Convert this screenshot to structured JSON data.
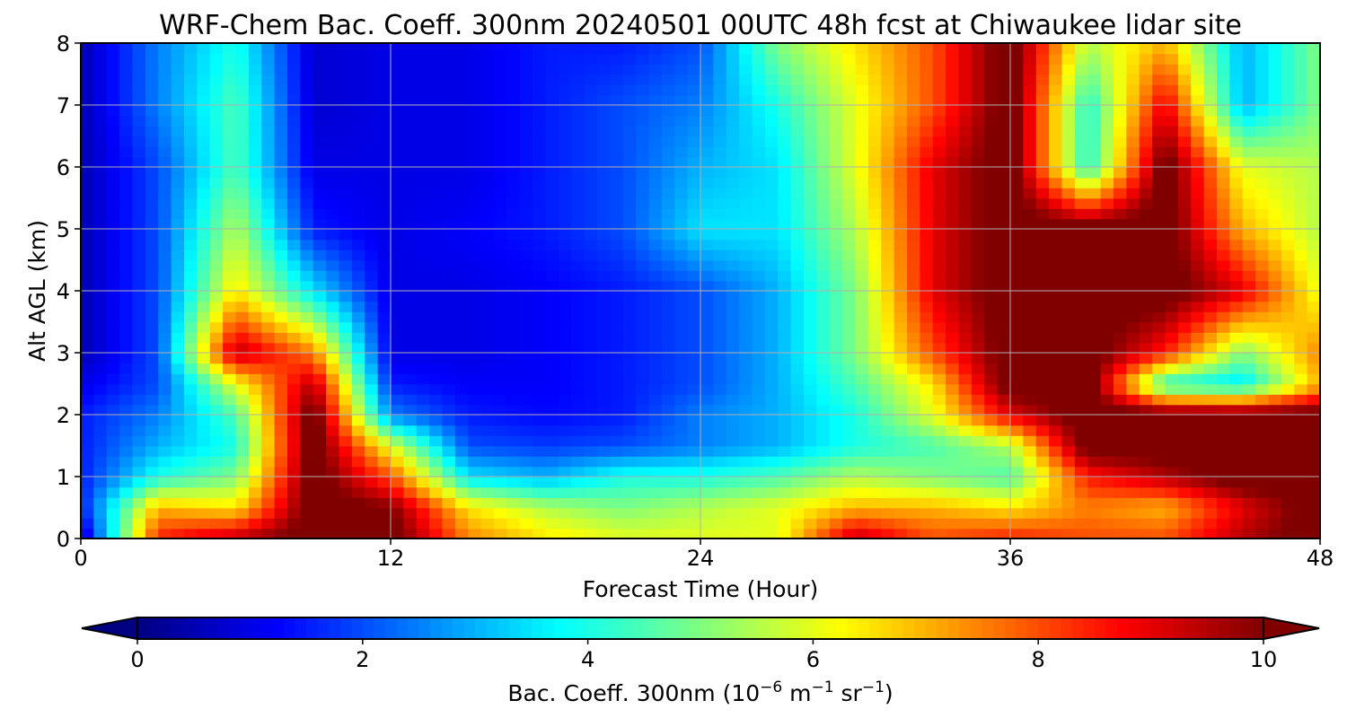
{
  "chart_data": {
    "type": "heatmap",
    "title": "WRF-Chem Bac. Coeff. 300nm  20240501 00UTC 48h fcst at Chiwaukee lidar site",
    "xlabel": "Forecast Time (Hour)",
    "ylabel": "Alt AGL (km)",
    "xlim": [
      0,
      48
    ],
    "ylim": [
      0,
      8
    ],
    "x_ticks": [
      0,
      12,
      24,
      36,
      48
    ],
    "y_ticks": [
      0,
      1,
      2,
      3,
      4,
      5,
      6,
      7,
      8
    ],
    "grid": true,
    "colormap": "jet",
    "colorbar": {
      "orientation": "horizontal",
      "placement": "bottom",
      "range": [
        0,
        10
      ],
      "ticks": [
        0,
        2,
        4,
        6,
        8,
        10
      ],
      "extend": "both",
      "label_main": "Bac. Coeff. 300nm  (10",
      "label_exp1": "−6",
      "label_mid": " m",
      "label_exp2": "−1",
      "label_mid2": " sr",
      "label_exp3": "−1",
      "label_end": ")"
    },
    "x": [
      0,
      3,
      6,
      9,
      12,
      15,
      18,
      21,
      24,
      27,
      30,
      33,
      36,
      39,
      42,
      45,
      48
    ],
    "y": [
      0,
      0.5,
      1,
      1.5,
      2,
      2.5,
      3,
      4,
      5,
      6,
      7,
      8
    ],
    "z": [
      [
        0.5,
        8.5,
        9.5,
        10.5,
        10.5,
        7.5,
        6.5,
        6.0,
        6.0,
        6.0,
        9.5,
        8.0,
        8.5,
        8.0,
        8.0,
        9.5,
        10.5
      ],
      [
        1.5,
        7.0,
        6.5,
        10.5,
        10.0,
        6.5,
        5.5,
        5.0,
        5.5,
        6.0,
        7.0,
        7.0,
        6.5,
        7.5,
        7.0,
        9.0,
        10.5
      ],
      [
        1.5,
        4.0,
        5.0,
        10.5,
        8.0,
        3.5,
        3.0,
        4.0,
        4.0,
        4.5,
        5.5,
        5.0,
        4.5,
        8.5,
        9.5,
        10.5,
        10.5
      ],
      [
        1.5,
        3.0,
        4.0,
        10.5,
        6.0,
        2.0,
        1.8,
        2.0,
        2.5,
        3.0,
        4.0,
        4.5,
        5.5,
        10.5,
        10.5,
        10.5,
        10.5
      ],
      [
        1.5,
        2.5,
        4.5,
        10.5,
        2.5,
        1.5,
        1.3,
        1.5,
        2.5,
        3.0,
        4.0,
        6.0,
        9.0,
        10.5,
        10.5,
        10.5,
        10.5
      ],
      [
        1.0,
        2.0,
        6.0,
        9.5,
        1.5,
        1.2,
        1.2,
        1.5,
        2.0,
        3.0,
        4.5,
        6.5,
        10.5,
        10.5,
        4.0,
        3.5,
        7.0
      ],
      [
        0.5,
        2.0,
        9.5,
        7.5,
        1.0,
        1.0,
        1.2,
        1.5,
        2.0,
        3.0,
        5.0,
        8.0,
        10.5,
        10.5,
        8.5,
        5.0,
        7.5
      ],
      [
        0.5,
        2.0,
        6.5,
        3.5,
        1.0,
        1.0,
        1.2,
        1.5,
        2.0,
        3.0,
        5.0,
        9.0,
        10.5,
        10.5,
        10.5,
        9.0,
        6.0
      ],
      [
        0.5,
        2.0,
        5.5,
        1.5,
        1.0,
        1.2,
        1.5,
        2.0,
        3.5,
        3.5,
        5.5,
        9.0,
        10.5,
        10.5,
        10.5,
        7.0,
        5.5
      ],
      [
        0.5,
        2.0,
        4.5,
        1.0,
        1.0,
        1.0,
        1.5,
        2.0,
        3.0,
        3.5,
        6.0,
        9.0,
        10.5,
        4.0,
        10.5,
        6.0,
        5.5
      ],
      [
        0.5,
        2.5,
        4.5,
        0.8,
        1.0,
        1.0,
        1.5,
        2.0,
        2.5,
        4.0,
        6.0,
        8.0,
        10.5,
        4.0,
        9.0,
        3.0,
        5.0
      ],
      [
        0.5,
        2.5,
        4.0,
        0.8,
        1.0,
        1.0,
        1.5,
        1.5,
        2.0,
        5.0,
        6.5,
        8.0,
        10.5,
        5.5,
        7.0,
        3.0,
        5.0
      ]
    ]
  }
}
